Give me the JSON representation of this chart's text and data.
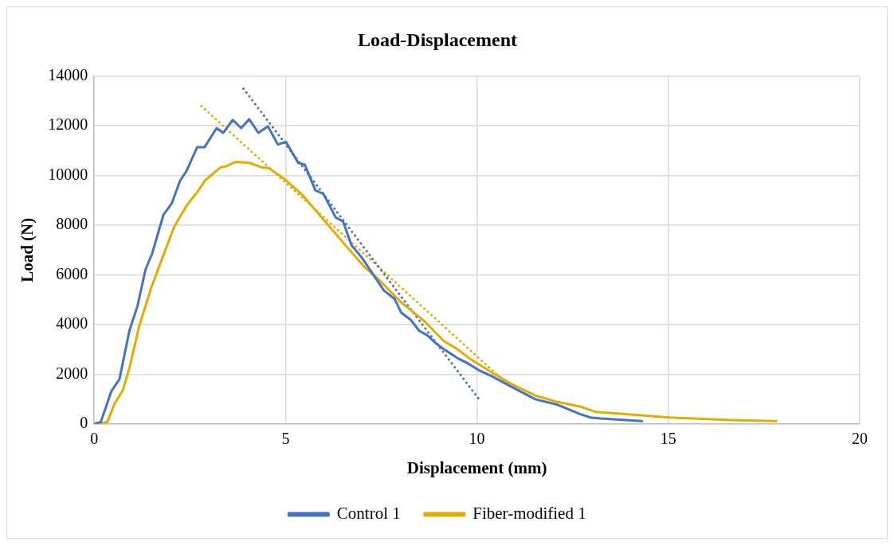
{
  "chart_data": {
    "type": "line",
    "title": "Load-Displacement",
    "xlabel": "Displacement (mm)",
    "ylabel": "Load (N)",
    "xlim": [
      0,
      20
    ],
    "xticks": [
      0,
      5,
      10,
      15,
      20
    ],
    "ylim": [
      0,
      14000
    ],
    "yticks": [
      0,
      2000,
      4000,
      6000,
      8000,
      10000,
      12000,
      14000
    ],
    "grid": true,
    "legend": "bottom",
    "marker": "none",
    "series": [
      {
        "name": "Control 1",
        "color": "#4472c4",
        "x": [
          0,
          0.17,
          0.45,
          0.66,
          0.92,
          1.13,
          1.34,
          1.51,
          1.81,
          2.03,
          2.24,
          2.41,
          2.69,
          2.88,
          3.2,
          3.37,
          3.62,
          3.84,
          4.05,
          4.29,
          4.54,
          4.8,
          5.01,
          5.33,
          5.5,
          5.78,
          5.99,
          6.31,
          6.5,
          6.72,
          6.99,
          7.57,
          7.85,
          8.02,
          8.27,
          8.49,
          8.7,
          8.91,
          9.13,
          9.49,
          9.77,
          10.04,
          10.4,
          10.98,
          11.53,
          12.11,
          12.69,
          12.96,
          13.24,
          14.31
        ],
        "values": [
          0,
          70,
          1320,
          1800,
          3750,
          4740,
          6210,
          6840,
          8420,
          8890,
          9780,
          10180,
          11140,
          11140,
          11910,
          11720,
          12240,
          11910,
          12270,
          11720,
          11980,
          11250,
          11360,
          10510,
          10440,
          9410,
          9260,
          8310,
          8160,
          7200,
          6700,
          5370,
          5030,
          4480,
          4190,
          3750,
          3570,
          3270,
          3010,
          2650,
          2430,
          2170,
          1910,
          1430,
          990,
          770,
          400,
          260,
          220,
          110
        ]
      },
      {
        "name": "Fiber-modified 1",
        "color": "#e5ac00",
        "x": [
          0,
          0.34,
          0.53,
          0.75,
          0.92,
          1.17,
          1.49,
          1.73,
          2.09,
          2.41,
          2.69,
          2.9,
          3.3,
          3.43,
          3.69,
          4.07,
          4.37,
          4.58,
          5.01,
          5.44,
          5.99,
          6.5,
          7.06,
          7.42,
          8.0,
          8.64,
          9.13,
          9.49,
          9.83,
          10.4,
          10.98,
          11.53,
          12.11,
          12.69,
          13.11,
          15.03,
          16.65,
          17.82
        ],
        "values": [
          0,
          70,
          800,
          1360,
          2240,
          3900,
          5480,
          6470,
          7940,
          8780,
          9330,
          9810,
          10330,
          10360,
          10550,
          10510,
          10330,
          10290,
          9810,
          9220,
          8230,
          7310,
          6320,
          5840,
          4920,
          4120,
          3340,
          3010,
          2610,
          2060,
          1540,
          1140,
          880,
          700,
          480,
          260,
          150,
          110
        ]
      },
      {
        "color": "#4472c4",
        "line_style": "dotted",
        "x": [
          3.9,
          10.1
        ],
        "values": [
          13500,
          900
        ]
      },
      {
        "color": "#e5ac00",
        "line_style": "dotted",
        "x": [
          2.8,
          10.8
        ],
        "values": [
          12800,
          1600
        ]
      }
    ]
  }
}
